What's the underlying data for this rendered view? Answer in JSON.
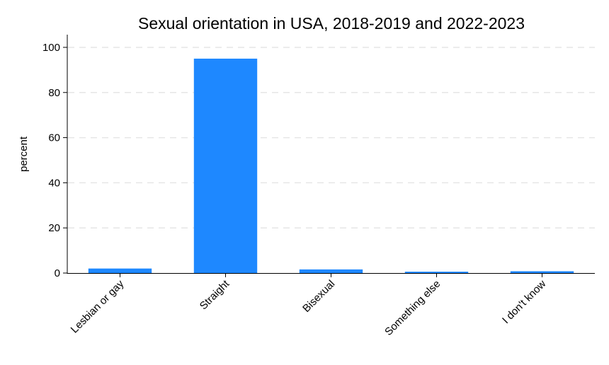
{
  "chart_data": {
    "type": "bar",
    "title": "Sexual orientation in USA, 2018-2019 and 2022-2023",
    "xlabel": "",
    "ylabel": "percent",
    "categories": [
      "Lesbian or gay",
      "Straight",
      "Bisexual",
      "Something else",
      "I don't know"
    ],
    "values": [
      2.0,
      95.0,
      1.6,
      0.6,
      0.8
    ],
    "ylim": [
      0,
      105
    ],
    "yticks": [
      0,
      20,
      40,
      60,
      80,
      100
    ],
    "grid": true,
    "bar_color": "#1e88ff"
  }
}
